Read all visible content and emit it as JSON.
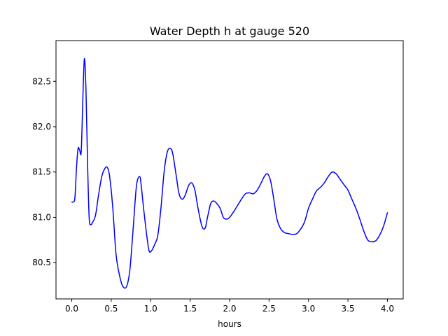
{
  "chart_data": {
    "type": "line",
    "title": "Water Depth h at gauge 520",
    "xlabel": "hours",
    "ylabel": "",
    "xlim": [
      -0.2,
      4.2
    ],
    "ylim": [
      80.1,
      82.95
    ],
    "xticks": [
      0.0,
      0.5,
      1.0,
      1.5,
      2.0,
      2.5,
      3.0,
      3.5,
      4.0
    ],
    "xtick_labels": [
      "0.0",
      "0.5",
      "1.0",
      "1.5",
      "2.0",
      "2.5",
      "3.0",
      "3.5",
      "4.0"
    ],
    "yticks": [
      80.5,
      81.0,
      81.5,
      82.0,
      82.5
    ],
    "ytick_labels": [
      "80.5",
      "81.0",
      "81.5",
      "82.0",
      "82.5"
    ],
    "grid": false,
    "series": [
      {
        "color": "#0000ff",
        "x": [
          0.0,
          0.02,
          0.04,
          0.06,
          0.08,
          0.1,
          0.12,
          0.14,
          0.16,
          0.18,
          0.2,
          0.22,
          0.24,
          0.26,
          0.3,
          0.34,
          0.38,
          0.42,
          0.45,
          0.48,
          0.52,
          0.56,
          0.6,
          0.64,
          0.68,
          0.71,
          0.74,
          0.78,
          0.82,
          0.86,
          0.88,
          0.91,
          0.95,
          0.98,
          1.01,
          1.05,
          1.09,
          1.13,
          1.17,
          1.21,
          1.25,
          1.28,
          1.32,
          1.36,
          1.4,
          1.44,
          1.48,
          1.52,
          1.56,
          1.6,
          1.65,
          1.69,
          1.72,
          1.76,
          1.8,
          1.84,
          1.88,
          1.92,
          1.96,
          2.0,
          2.05,
          2.1,
          2.15,
          2.2,
          2.25,
          2.3,
          2.35,
          2.4,
          2.44,
          2.48,
          2.52,
          2.56,
          2.6,
          2.65,
          2.7,
          2.75,
          2.8,
          2.85,
          2.9,
          2.95,
          3.0,
          3.05,
          3.1,
          3.15,
          3.2,
          3.25,
          3.3,
          3.35,
          3.4,
          3.45,
          3.5,
          3.55,
          3.6,
          3.65,
          3.7,
          3.75,
          3.8,
          3.85,
          3.9,
          3.95,
          4.0
        ],
        "y": [
          81.17,
          81.17,
          81.22,
          81.55,
          81.76,
          81.74,
          81.73,
          82.3,
          82.75,
          82.4,
          81.6,
          81.0,
          80.92,
          80.94,
          81.02,
          81.25,
          81.45,
          81.54,
          81.55,
          81.45,
          81.1,
          80.6,
          80.38,
          80.25,
          80.22,
          80.28,
          80.45,
          80.9,
          81.35,
          81.45,
          81.35,
          81.1,
          80.8,
          80.63,
          80.63,
          80.7,
          80.8,
          81.1,
          81.5,
          81.72,
          81.76,
          81.7,
          81.48,
          81.26,
          81.2,
          81.25,
          81.35,
          81.38,
          81.3,
          81.1,
          80.9,
          80.88,
          81.0,
          81.15,
          81.18,
          81.15,
          81.1,
          81.0,
          80.98,
          81.0,
          81.06,
          81.13,
          81.2,
          81.26,
          81.27,
          81.26,
          81.3,
          81.38,
          81.45,
          81.48,
          81.4,
          81.2,
          80.98,
          80.87,
          80.83,
          80.82,
          80.81,
          80.82,
          80.87,
          80.95,
          81.1,
          81.2,
          81.29,
          81.33,
          81.38,
          81.45,
          81.5,
          81.48,
          81.42,
          81.36,
          81.3,
          81.2,
          81.1,
          80.98,
          80.85,
          80.75,
          80.73,
          80.74,
          80.8,
          80.9,
          81.05
        ]
      }
    ]
  }
}
